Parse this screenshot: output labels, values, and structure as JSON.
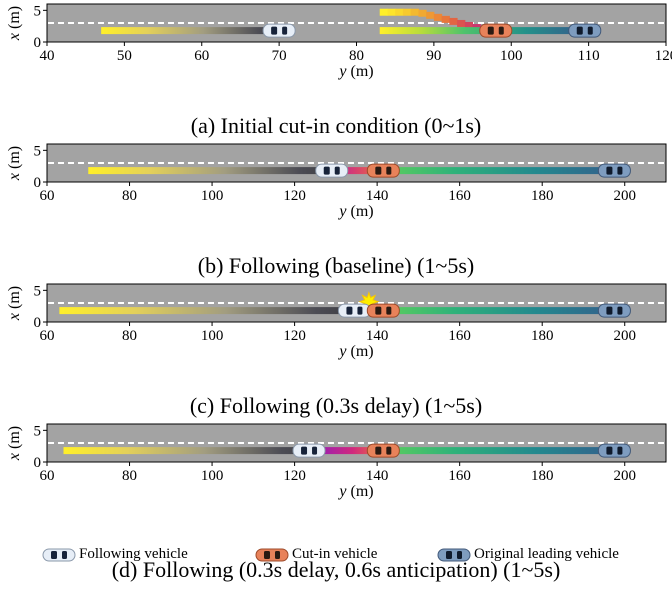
{
  "colors": {
    "road": "#a3a3a3",
    "lane_line": "#ffffff",
    "following_vehicle": "#e7eef7",
    "cutin_vehicle": "#e8825a",
    "original_leading_vehicle": "#7e9cbf",
    "collision_marker": "#ffee00"
  },
  "legend": {
    "following": "Following vehicle",
    "cutin": "Cut-in vehicle",
    "leading": "Original leading vehicle"
  },
  "chart_data": [
    {
      "type": "scatter",
      "caption": "(a) Initial cut-in condition (0~1s)",
      "xlabel": "y (m)",
      "ylabel": "x (m)",
      "xlim": [
        40,
        120
      ],
      "ylim": [
        0,
        6
      ],
      "xticks": [
        40,
        50,
        60,
        70,
        80,
        90,
        100,
        110,
        120
      ],
      "yticks": [
        0,
        5
      ],
      "lane_line_x": 3,
      "trajectories": [
        {
          "vehicle": "following",
          "y_start": 47,
          "y_end": 71,
          "x_start": 1.8,
          "x_end": 1.8,
          "gradient": "yellow-gray"
        },
        {
          "vehicle": "cutin",
          "y_start": 83,
          "y_end": 98,
          "x_start": 4.7,
          "x_end": 1.8,
          "gradient": "yellow-magenta",
          "path": "lane-change"
        },
        {
          "vehicle": "leading",
          "y_start": 83,
          "y_end": 110,
          "x_start": 1.8,
          "x_end": 1.8,
          "gradient": "yellow-green-blue"
        }
      ],
      "vehicles": [
        {
          "type": "following",
          "y": 70,
          "x": 1.8
        },
        {
          "type": "cutin",
          "y": 98,
          "x": 1.8
        },
        {
          "type": "leading",
          "y": 109.5,
          "x": 1.8
        }
      ]
    },
    {
      "type": "scatter",
      "caption": "(b) Following (baseline) (1~5s)",
      "xlabel": "y (m)",
      "ylabel": "x (m)",
      "xlim": [
        60,
        210
      ],
      "ylim": [
        0,
        6
      ],
      "xticks": [
        60,
        80,
        100,
        120,
        140,
        160,
        180,
        200
      ],
      "yticks": [
        0,
        5
      ],
      "lane_line_x": 3,
      "trajectories": [
        {
          "vehicle": "following",
          "y_start": 70,
          "y_end": 130,
          "x_start": 1.8,
          "x_end": 1.8,
          "gradient": "yellow-gray"
        },
        {
          "vehicle": "cutin",
          "y_start": 130,
          "y_end": 142,
          "x_start": 1.8,
          "x_end": 1.8,
          "gradient": "orange"
        },
        {
          "vehicle": "leading",
          "y_start": 142,
          "y_end": 198,
          "x_start": 1.8,
          "x_end": 1.8,
          "gradient": "green-blue"
        }
      ],
      "vehicles": [
        {
          "type": "following",
          "y": 129,
          "x": 1.8
        },
        {
          "type": "cutin",
          "y": 141.5,
          "x": 1.8
        },
        {
          "type": "leading",
          "y": 197.5,
          "x": 1.8
        }
      ]
    },
    {
      "type": "scatter",
      "caption": "(c) Following (0.3s delay) (1~5s)",
      "xlabel": "y (m)",
      "ylabel": "x (m)",
      "xlim": [
        60,
        210
      ],
      "ylim": [
        0,
        6
      ],
      "xticks": [
        60,
        80,
        100,
        120,
        140,
        160,
        180,
        200
      ],
      "yticks": [
        0,
        5
      ],
      "lane_line_x": 3,
      "trajectories": [
        {
          "vehicle": "following",
          "y_start": 63,
          "y_end": 136,
          "x_start": 1.8,
          "x_end": 1.8,
          "gradient": "yellow-gray"
        },
        {
          "vehicle": "cutin",
          "y_start": 136,
          "y_end": 142,
          "x_start": 1.8,
          "x_end": 1.8,
          "gradient": "orange"
        },
        {
          "vehicle": "leading",
          "y_start": 142,
          "y_end": 198,
          "x_start": 1.8,
          "x_end": 1.8,
          "gradient": "green-blue"
        }
      ],
      "vehicles": [
        {
          "type": "following",
          "y": 134.5,
          "x": 1.8
        },
        {
          "type": "cutin",
          "y": 141.5,
          "x": 1.8
        },
        {
          "type": "leading",
          "y": 197.5,
          "x": 1.8
        }
      ],
      "collision": {
        "y": 138,
        "x": 3.2
      }
    },
    {
      "type": "scatter",
      "caption": "(d) Following (0.3s delay, 0.6s anticipation) (1~5s)",
      "xlabel": "y (m)",
      "ylabel": "x (m)",
      "xlim": [
        60,
        210
      ],
      "ylim": [
        0,
        6
      ],
      "xticks": [
        60,
        80,
        100,
        120,
        140,
        160,
        180,
        200
      ],
      "yticks": [
        0,
        5
      ],
      "lane_line_x": 3,
      "trajectories": [
        {
          "vehicle": "following",
          "y_start": 64,
          "y_end": 126,
          "x_start": 1.8,
          "x_end": 1.8,
          "gradient": "yellow-gray"
        },
        {
          "vehicle": "cutin",
          "y_start": 126,
          "y_end": 142,
          "x_start": 1.8,
          "x_end": 1.8,
          "gradient": "magenta-orange"
        },
        {
          "vehicle": "leading",
          "y_start": 142,
          "y_end": 198,
          "x_start": 1.8,
          "x_end": 1.8,
          "gradient": "green-blue"
        }
      ],
      "vehicles": [
        {
          "type": "following",
          "y": 123.5,
          "x": 1.8
        },
        {
          "type": "cutin",
          "y": 141.5,
          "x": 1.8
        },
        {
          "type": "leading",
          "y": 197.5,
          "x": 1.8
        }
      ]
    }
  ]
}
